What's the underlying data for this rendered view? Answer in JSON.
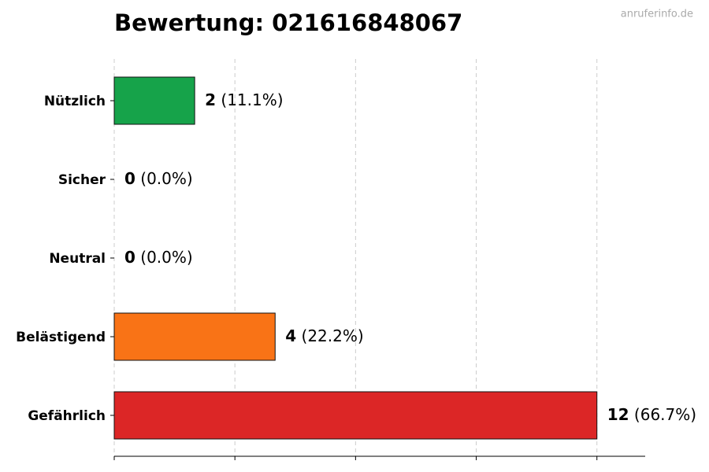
{
  "chart_data": {
    "type": "barh",
    "title": "Bewertung: 021616848067",
    "watermark": "anruferinfo.de",
    "categories": [
      "Nützlich",
      "Sicher",
      "Neutral",
      "Belästigend",
      "Gefährlich"
    ],
    "values": [
      2,
      0,
      0,
      4,
      12
    ],
    "percent_labels": [
      "(11.1%)",
      "(0.0%)",
      "(0.0%)",
      "(22.2%)",
      "(66.7%)"
    ],
    "colors": [
      "#16a34a",
      "#9ca3af",
      "#6b7280",
      "#f97316",
      "#dc2626"
    ],
    "xlim": [
      0,
      13.2
    ],
    "xticks": [
      0,
      3,
      6,
      9,
      12
    ],
    "grid": true
  }
}
